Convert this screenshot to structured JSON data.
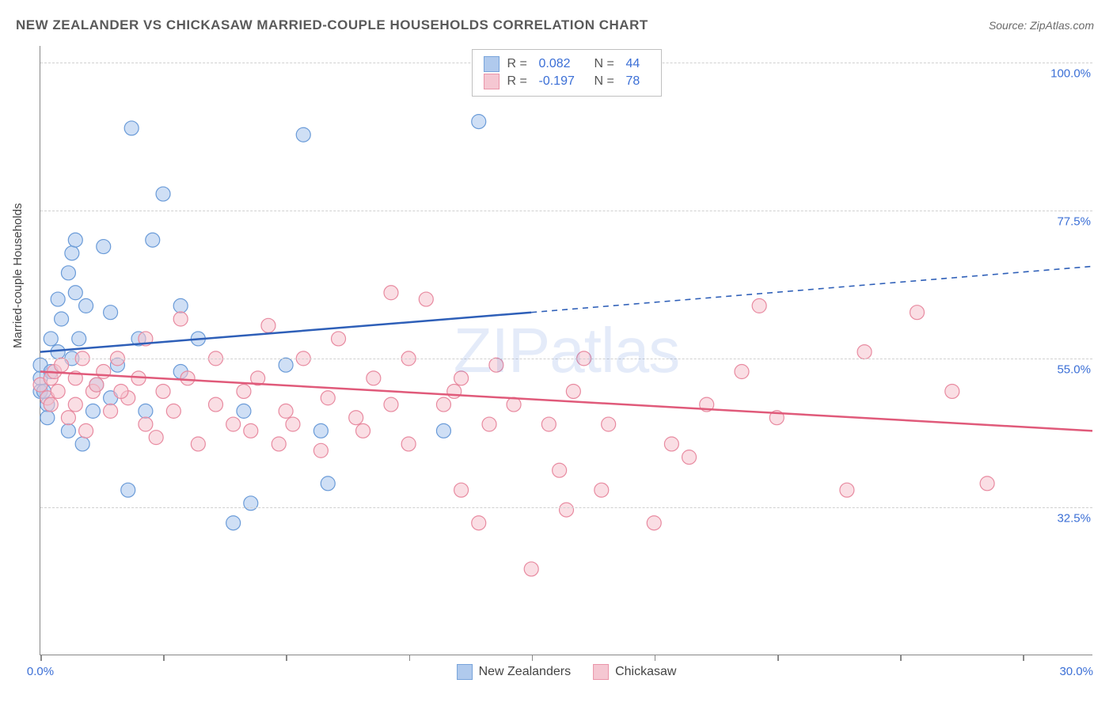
{
  "title": "NEW ZEALANDER VS CHICKASAW MARRIED-COUPLE HOUSEHOLDS CORRELATION CHART",
  "source": "Source: ZipAtlas.com",
  "y_axis_label": "Married-couple Households",
  "watermark": "ZIPatlas",
  "chart": {
    "type": "scatter",
    "xlim": [
      0,
      30
    ],
    "ylim": [
      10,
      102.5
    ],
    "x_ticks": [
      0,
      3.5,
      7,
      10.5,
      14,
      17.5,
      21,
      24.5,
      28
    ],
    "x_tick_labels_shown": {
      "0": "0.0%",
      "30": "30.0%"
    },
    "y_ticks": [
      32.5,
      55.0,
      77.5,
      100.0
    ],
    "y_tick_labels": [
      "32.5%",
      "55.0%",
      "77.5%",
      "100.0%"
    ],
    "grid_color": "#d0d0d0",
    "background_color": "#ffffff",
    "axis_color": "#888888",
    "label_color": "#3b6fd6"
  },
  "series": [
    {
      "name": "New Zealanders",
      "fill_color": "#a8c5ec",
      "stroke_color": "#6a9bd8",
      "fill_opacity": 0.55,
      "marker_radius": 9,
      "correlation_R": "0.082",
      "correlation_N": "44",
      "regression": {
        "x1": 0,
        "y1": 56,
        "x2": 14,
        "y2": 62,
        "x2_ext": 30,
        "y2_ext": 69
      },
      "line_color": "#2e5fb8",
      "line_width": 2.5,
      "points": [
        [
          0,
          52
        ],
        [
          0,
          54
        ],
        [
          0,
          50
        ],
        [
          0.2,
          48
        ],
        [
          0.2,
          46
        ],
        [
          0.3,
          53
        ],
        [
          0.3,
          58
        ],
        [
          0.5,
          56
        ],
        [
          0.5,
          64
        ],
        [
          0.6,
          61
        ],
        [
          0.8,
          68
        ],
        [
          0.8,
          44
        ],
        [
          0.9,
          71
        ],
        [
          0.9,
          55
        ],
        [
          1.0,
          73
        ],
        [
          1.0,
          65
        ],
        [
          1.1,
          58
        ],
        [
          1.2,
          42
        ],
        [
          1.3,
          63
        ],
        [
          1.5,
          47
        ],
        [
          1.6,
          51
        ],
        [
          1.8,
          72
        ],
        [
          2.0,
          62
        ],
        [
          2.0,
          49
        ],
        [
          2.2,
          54
        ],
        [
          2.5,
          35
        ],
        [
          2.6,
          90
        ],
        [
          2.8,
          58
        ],
        [
          3.0,
          47
        ],
        [
          3.2,
          73
        ],
        [
          3.5,
          80
        ],
        [
          4.0,
          53
        ],
        [
          4.0,
          63
        ],
        [
          4.5,
          58
        ],
        [
          5.5,
          30
        ],
        [
          5.8,
          47
        ],
        [
          6.0,
          33
        ],
        [
          7.0,
          54
        ],
        [
          7.5,
          89
        ],
        [
          8.0,
          44
        ],
        [
          8.2,
          36
        ],
        [
          11.5,
          44
        ],
        [
          12.5,
          91
        ],
        [
          0.1,
          50
        ]
      ]
    },
    {
      "name": "Chickasaw",
      "fill_color": "#f5c2ce",
      "stroke_color": "#e88aa0",
      "fill_opacity": 0.55,
      "marker_radius": 9,
      "correlation_R": "-0.197",
      "correlation_N": "78",
      "regression": {
        "x1": 0,
        "y1": 53,
        "x2": 30,
        "y2": 44
      },
      "line_color": "#e05a7a",
      "line_width": 2.5,
      "points": [
        [
          0,
          51
        ],
        [
          0.2,
          49
        ],
        [
          0.3,
          52
        ],
        [
          0.3,
          48
        ],
        [
          0.4,
          53
        ],
        [
          0.5,
          50
        ],
        [
          0.6,
          54
        ],
        [
          0.8,
          46
        ],
        [
          1.0,
          52
        ],
        [
          1.0,
          48
        ],
        [
          1.2,
          55
        ],
        [
          1.3,
          44
        ],
        [
          1.5,
          50
        ],
        [
          1.8,
          53
        ],
        [
          2.0,
          47
        ],
        [
          2.2,
          55
        ],
        [
          2.5,
          49
        ],
        [
          2.8,
          52
        ],
        [
          3.0,
          58
        ],
        [
          3.0,
          45
        ],
        [
          3.5,
          50
        ],
        [
          3.8,
          47
        ],
        [
          4.0,
          61
        ],
        [
          4.2,
          52
        ],
        [
          4.5,
          42
        ],
        [
          5.0,
          55
        ],
        [
          5.0,
          48
        ],
        [
          5.5,
          45
        ],
        [
          5.8,
          50
        ],
        [
          6.0,
          44
        ],
        [
          6.2,
          52
        ],
        [
          6.5,
          60
        ],
        [
          7.0,
          47
        ],
        [
          7.2,
          45
        ],
        [
          7.5,
          55
        ],
        [
          8.0,
          41
        ],
        [
          8.2,
          49
        ],
        [
          8.5,
          58
        ],
        [
          9.0,
          46
        ],
        [
          9.5,
          52
        ],
        [
          10.0,
          65
        ],
        [
          10.0,
          48
        ],
        [
          10.5,
          42
        ],
        [
          10.5,
          55
        ],
        [
          11.0,
          64
        ],
        [
          11.5,
          48
        ],
        [
          12.0,
          35
        ],
        [
          12.0,
          52
        ],
        [
          12.5,
          30
        ],
        [
          12.8,
          45
        ],
        [
          13.0,
          54
        ],
        [
          13.5,
          48
        ],
        [
          14.0,
          23
        ],
        [
          14.5,
          45
        ],
        [
          14.8,
          38
        ],
        [
          15.0,
          32
        ],
        [
          15.2,
          50
        ],
        [
          15.5,
          55
        ],
        [
          16.0,
          35
        ],
        [
          16.2,
          45
        ],
        [
          17.5,
          30
        ],
        [
          18.0,
          42
        ],
        [
          18.5,
          40
        ],
        [
          19.0,
          48
        ],
        [
          20.0,
          53
        ],
        [
          20.5,
          63
        ],
        [
          21.0,
          46
        ],
        [
          23.0,
          35
        ],
        [
          23.5,
          56
        ],
        [
          25.0,
          62
        ],
        [
          26.0,
          50
        ],
        [
          27.0,
          36
        ],
        [
          1.6,
          51
        ],
        [
          2.3,
          50
        ],
        [
          3.3,
          43
        ],
        [
          6.8,
          42
        ],
        [
          9.2,
          44
        ],
        [
          11.8,
          50
        ]
      ]
    }
  ],
  "legend_bottom": [
    {
      "label": "New Zealanders",
      "fill": "#a8c5ec",
      "stroke": "#6a9bd8"
    },
    {
      "label": "Chickasaw",
      "fill": "#f5c2ce",
      "stroke": "#e88aa0"
    }
  ]
}
